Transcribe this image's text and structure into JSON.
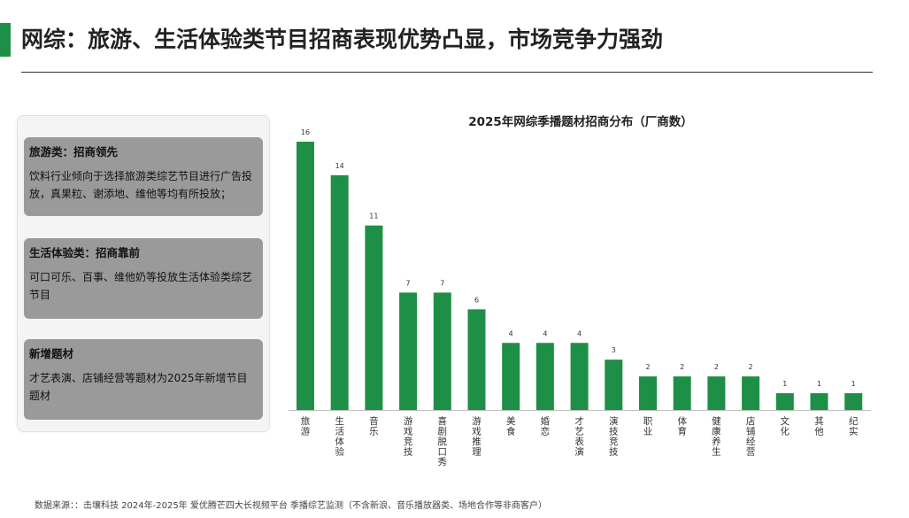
{
  "header": {
    "title": "网综：旅游、生活体验类节目招商表现优势凸显，市场竞争力强劲",
    "accent_color": "#1e8f46"
  },
  "cards": [
    {
      "title": "旅游类：招商领先",
      "body": "饮料行业倾向于选择旅游类综艺节目进行广告投放，真果粒、谢添地、维他等均有所投放；"
    },
    {
      "title": "生活体验类：招商靠前",
      "body": "可口可乐、百事、维他奶等投放生活体验类综艺节目"
    },
    {
      "title": "新增题材",
      "body": "才艺表演、店铺经营等题材为2025年新增节目题材"
    }
  ],
  "chart_data": {
    "type": "bar",
    "title": "2025年网综季播题材招商分布（厂商数）",
    "categories": [
      "旅游",
      "生活体验",
      "音乐",
      "游戏竞技",
      "喜剧脱口秀",
      "游戏推理",
      "美食",
      "婚恋",
      "才艺表演",
      "演技竞技",
      "职业",
      "体育",
      "健康养生",
      "店铺经营",
      "文化",
      "其他",
      "纪实"
    ],
    "values": [
      16,
      14,
      11,
      7,
      7,
      6,
      4,
      4,
      4,
      3,
      2,
      2,
      2,
      2,
      1,
      1,
      1
    ],
    "ylim": [
      0,
      16
    ],
    "bar_color": "#1e8f46",
    "grid": false,
    "legend": "none"
  },
  "footer": {
    "source": "数据来源：：击壤科技 2024年-2025年 爱优腾芒四大长视频平台 季播综艺监测（不含新浪、音乐播放器类、场地合作等非商客户）"
  }
}
